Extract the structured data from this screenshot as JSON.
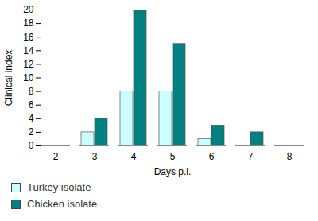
{
  "chart_data": {
    "type": "bar",
    "x_label": "Days p.i.",
    "y_label": "Clinical index",
    "categories": [
      "2",
      "3",
      "4",
      "5",
      "6",
      "7",
      "8"
    ],
    "series": [
      {
        "name": "Turkey isolate",
        "color": "#ccffff",
        "values": [
          0,
          2,
          8,
          8,
          1,
          0,
          0
        ]
      },
      {
        "name": "Chicken isolate",
        "color": "#008080",
        "values": [
          0,
          4,
          20,
          15,
          3,
          2,
          0
        ]
      }
    ],
    "ylim": [
      0,
      20
    ],
    "yticks": [
      0,
      2,
      4,
      6,
      8,
      10,
      12,
      14,
      16,
      18,
      20
    ],
    "grid": false,
    "legend": "bottom-left"
  }
}
